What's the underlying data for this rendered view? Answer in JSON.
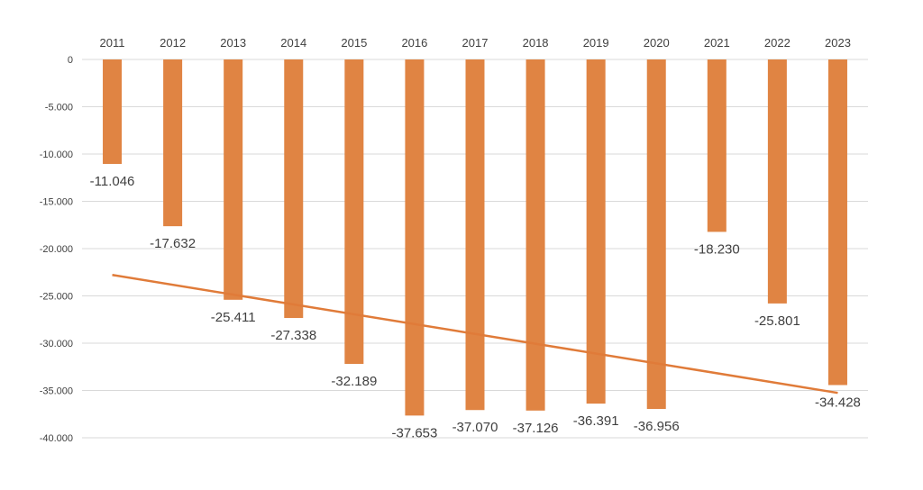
{
  "chart_data": {
    "type": "bar",
    "categories": [
      "2011",
      "2012",
      "2013",
      "2014",
      "2015",
      "2016",
      "2017",
      "2018",
      "2019",
      "2020",
      "2021",
      "2022",
      "2023"
    ],
    "values": [
      -11046,
      -17632,
      -25411,
      -27338,
      -32189,
      -37653,
      -37070,
      -37126,
      -36391,
      -36956,
      -18230,
      -25801,
      -34428
    ],
    "value_labels": [
      "-11.046",
      "-17.632",
      "-25.411",
      "-27.338",
      "-32.189",
      "-37.653",
      "-37.070",
      "-37.126",
      "-36.391",
      "-36.956",
      "-18.230",
      "-25.801",
      "-34.428"
    ],
    "y_ticks": [
      0,
      -5000,
      -10000,
      -15000,
      -20000,
      -25000,
      -30000,
      -35000,
      -40000
    ],
    "y_tick_labels": [
      "0",
      "-5.000",
      "-10.000",
      "-15.000",
      "-20.000",
      "-25.000",
      "-30.000",
      "-35.000",
      "-40.000"
    ],
    "ylim": [
      -40000,
      0
    ],
    "title": "",
    "xlabel": "",
    "ylabel": "",
    "category_axis_position": "top",
    "grid": true,
    "legend": false,
    "trendline": {
      "type": "linear",
      "color": "#E07B39"
    },
    "bar_color": "#E08443"
  }
}
